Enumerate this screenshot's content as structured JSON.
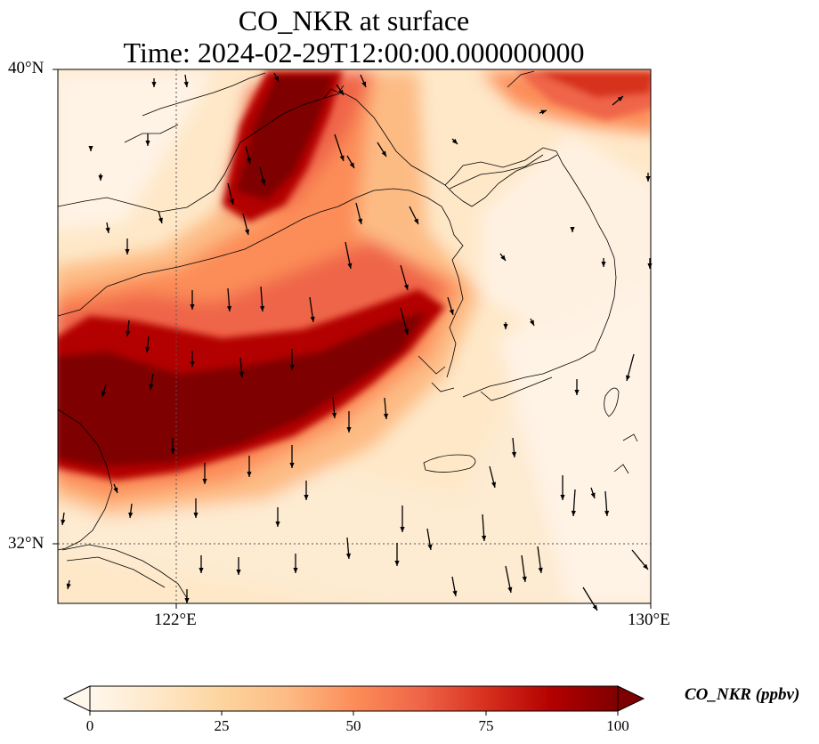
{
  "title": {
    "line1": "CO_NKR at surface",
    "line2": "Time: 2024-02-29T12:00:00.000000000"
  },
  "map": {
    "lon_range": [
      120,
      130
    ],
    "lat_range": [
      31,
      40
    ],
    "lon_ticks": [
      {
        "value": 122,
        "label": "122°E"
      },
      {
        "value": 130,
        "label": "130°E"
      }
    ],
    "lat_ticks": [
      {
        "value": 40,
        "label": "40°N"
      },
      {
        "value": 32,
        "label": "32°N"
      }
    ],
    "gridlines": "dotted"
  },
  "colorbar": {
    "label": "CO_NKR (ppbv)",
    "min": 0,
    "max": 100,
    "ticks": [
      0,
      25,
      50,
      75,
      100
    ],
    "colormap": "OrRd",
    "extend": "both",
    "colors": [
      "#fff7ec",
      "#fee8c8",
      "#fdd49e",
      "#fdbb84",
      "#fc8d59",
      "#ef6548",
      "#d7301f",
      "#b30000",
      "#7f0000"
    ]
  }
}
